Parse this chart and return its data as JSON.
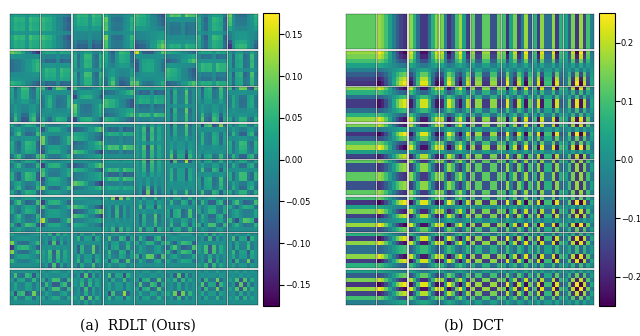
{
  "n": 8,
  "rdlt_vmin": -0.175,
  "rdlt_vmax": 0.175,
  "dct_vmin": -0.25,
  "dct_vmax": 0.25,
  "rdlt_colorbar_ticks": [
    0.15,
    0.1,
    0.05,
    0.0,
    -0.05,
    -0.1,
    -0.15
  ],
  "dct_colorbar_ticks": [
    0.2,
    0.1,
    0.0,
    -0.1,
    -0.2
  ],
  "cmap": "viridis",
  "title_a": "(a)  RDLT (Ours)",
  "title_b": "(b)  DCT",
  "title_fontsize": 10,
  "figsize": [
    6.4,
    3.36
  ],
  "dpi": 100
}
